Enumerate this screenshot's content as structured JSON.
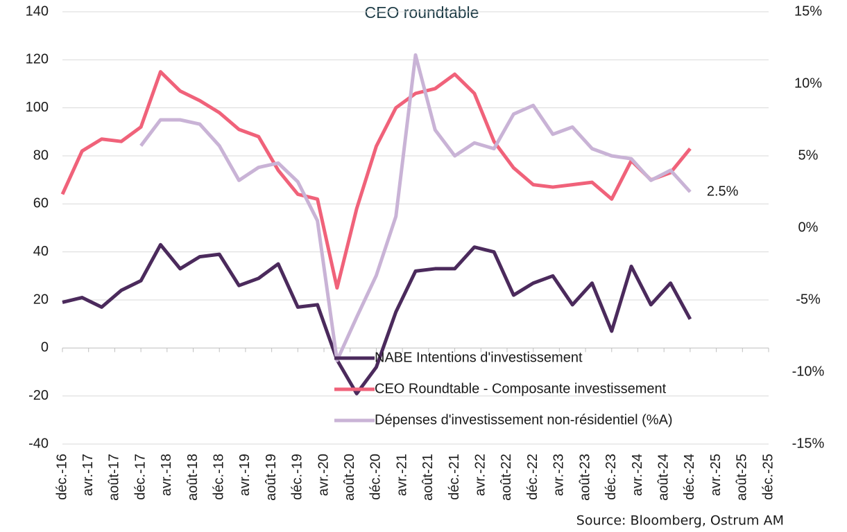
{
  "chart_data": {
    "type": "line",
    "title": "CEO roundtable",
    "source": "Source: Bloomberg, Ostrum AM",
    "x": [
      "2016-12",
      "2017-03",
      "2017-06",
      "2017-09",
      "2017-12",
      "2018-03",
      "2018-06",
      "2018-09",
      "2018-12",
      "2019-03",
      "2019-06",
      "2019-09",
      "2019-12",
      "2020-03",
      "2020-06",
      "2020-09",
      "2020-12",
      "2021-03",
      "2021-06",
      "2021-09",
      "2021-12",
      "2022-03",
      "2022-06",
      "2022-09",
      "2022-12",
      "2023-03",
      "2023-06",
      "2023-09",
      "2023-12",
      "2024-03",
      "2024-06",
      "2024-09",
      "2024-12"
    ],
    "xlim": [
      "2016-12",
      "2025-12"
    ],
    "xticks": [
      {
        "value": "2016-12",
        "label": "déc.-16"
      },
      {
        "value": "2017-04",
        "label": "avr.-17"
      },
      {
        "value": "2017-08",
        "label": "août-17"
      },
      {
        "value": "2017-12",
        "label": "déc.-17"
      },
      {
        "value": "2018-04",
        "label": "avr.-18"
      },
      {
        "value": "2018-08",
        "label": "août-18"
      },
      {
        "value": "2018-12",
        "label": "déc.-18"
      },
      {
        "value": "2019-04",
        "label": "avr.-19"
      },
      {
        "value": "2019-08",
        "label": "août-19"
      },
      {
        "value": "2019-12",
        "label": "déc.-19"
      },
      {
        "value": "2020-04",
        "label": "avr.-20"
      },
      {
        "value": "2020-08",
        "label": "août-20"
      },
      {
        "value": "2020-12",
        "label": "déc.-20"
      },
      {
        "value": "2021-04",
        "label": "avr.-21"
      },
      {
        "value": "2021-08",
        "label": "août-21"
      },
      {
        "value": "2021-12",
        "label": "déc.-21"
      },
      {
        "value": "2022-04",
        "label": "avr.-22"
      },
      {
        "value": "2022-08",
        "label": "août-22"
      },
      {
        "value": "2022-12",
        "label": "déc.-22"
      },
      {
        "value": "2023-04",
        "label": "avr.-23"
      },
      {
        "value": "2023-08",
        "label": "août-23"
      },
      {
        "value": "2023-12",
        "label": "déc.-23"
      },
      {
        "value": "2024-04",
        "label": "avr.-24"
      },
      {
        "value": "2024-08",
        "label": "août-24"
      },
      {
        "value": "2024-12",
        "label": "déc.-24"
      },
      {
        "value": "2025-04",
        "label": "avr.-25"
      },
      {
        "value": "2025-08",
        "label": "août-25"
      },
      {
        "value": "2025-12",
        "label": "déc.-25"
      }
    ],
    "ylim": [
      -40,
      140
    ],
    "yticks": [
      -40,
      -20,
      0,
      20,
      40,
      60,
      80,
      100,
      120,
      140
    ],
    "y2lim": [
      -15,
      15
    ],
    "y2ticks": [
      {
        "value": -15,
        "label": "-15%"
      },
      {
        "value": -10,
        "label": "-10%"
      },
      {
        "value": -5,
        "label": "-5%"
      },
      {
        "value": 0,
        "label": "0%"
      },
      {
        "value": 5,
        "label": "5%"
      },
      {
        "value": 10,
        "label": "10%"
      },
      {
        "value": 15,
        "label": "15%"
      }
    ],
    "grid": true,
    "legend": "bottom-center",
    "series": [
      {
        "name": "NABE Intentions d'investissement",
        "color": "#4b2a5c",
        "values": [
          19,
          21,
          17,
          24,
          28,
          43,
          33,
          38,
          39,
          26,
          29,
          35,
          17,
          18,
          -5,
          -19,
          -8,
          15,
          32,
          33,
          33,
          42,
          40,
          22,
          27,
          30,
          18,
          27,
          7,
          34,
          18,
          27,
          12
        ]
      },
      {
        "name": "CEO Roundtable - Composante investissement",
        "color": "#f0627a",
        "values": [
          64,
          82,
          87,
          86,
          92,
          115,
          107,
          103,
          98,
          91,
          88,
          74,
          64,
          62,
          25,
          58,
          84,
          100,
          106,
          108,
          114,
          106,
          86,
          75,
          68,
          67,
          68,
          69,
          62,
          78,
          70,
          73,
          83
        ]
      },
      {
        "name": "Dépenses d'investissement  non-résidentiel (%A)",
        "color": "#c9b3d6",
        "axis": "y2",
        "values": [
          null,
          null,
          null,
          null,
          5.7,
          7.5,
          7.5,
          7.2,
          5.7,
          3.3,
          4.2,
          4.5,
          3.2,
          0.5,
          -9.2,
          -6.2,
          -3.3,
          0.8,
          12,
          6.8,
          5.0,
          5.9,
          5.5,
          7.9,
          8.5,
          6.5,
          7.0,
          5.5,
          5.0,
          4.8,
          3.3,
          4.0,
          2.5
        ],
        "value_labels": [
          null,
          null,
          null,
          null,
          null,
          null,
          null,
          null,
          null,
          null,
          null,
          null,
          null,
          null,
          null,
          null,
          null,
          null,
          null,
          null,
          null,
          null,
          null,
          null,
          null,
          null,
          null,
          null,
          null,
          null,
          null,
          null,
          "2.5%"
        ]
      }
    ]
  }
}
